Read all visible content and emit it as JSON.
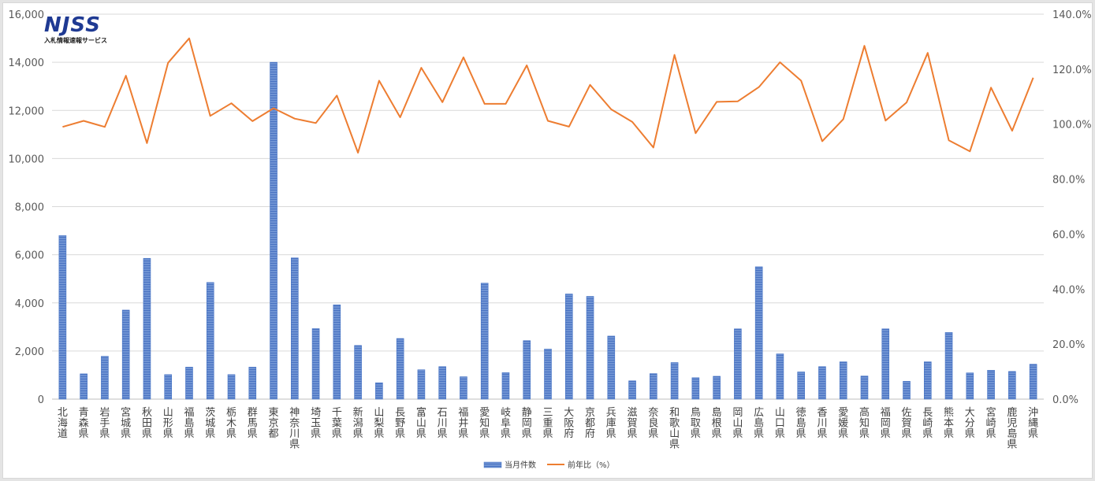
{
  "logo": {
    "mark": "NJSS",
    "subtitle": "入札情報速報サービス"
  },
  "colors": {
    "bar_fill": "#6f93d3",
    "bar_stripe": "#4472c4",
    "line": "#ed7d31",
    "grid": "#d9d9d9"
  },
  "legend": {
    "bar_label": "当月件数",
    "line_label": "前年比（%）"
  },
  "chart_data": {
    "type": "bar",
    "combo": "bar + line on secondary axis",
    "categories": [
      "北海道",
      "青森県",
      "岩手県",
      "宮城県",
      "秋田県",
      "山形県",
      "福島県",
      "茨城県",
      "栃木県",
      "群馬県",
      "東京都",
      "神奈川県",
      "埼玉県",
      "千葉県",
      "新潟県",
      "山梨県",
      "長野県",
      "富山県",
      "石川県",
      "福井県",
      "愛知県",
      "岐阜県",
      "静岡県",
      "三重県",
      "大阪府",
      "京都府",
      "兵庫県",
      "滋賀県",
      "奈良県",
      "和歌山県",
      "鳥取県",
      "島根県",
      "岡山県",
      "広島県",
      "山口県",
      "徳島県",
      "香川県",
      "愛媛県",
      "高知県",
      "福岡県",
      "佐賀県",
      "長崎県",
      "熊本県",
      "大分県",
      "宮崎県",
      "鹿児島県",
      "沖縄県"
    ],
    "series": [
      {
        "name": "当月件数",
        "axis": "left",
        "values": [
          6800,
          1050,
          1780,
          3700,
          5850,
          1020,
          1330,
          4850,
          1020,
          1330,
          14000,
          5870,
          2930,
          3920,
          2230,
          680,
          2520,
          1220,
          1350,
          930,
          4820,
          1100,
          2430,
          2080,
          4370,
          4270,
          2620,
          760,
          1060,
          1520,
          890,
          950,
          2920,
          5500,
          1880,
          1130,
          1350,
          1550,
          960,
          2920,
          740,
          1550,
          2770,
          1090,
          1200,
          1150,
          1450
        ]
      },
      {
        "name": "前年比（%）",
        "axis": "right",
        "values": [
          99.0,
          101.2,
          99.0,
          117.6,
          93.1,
          122.3,
          131.2,
          103.0,
          107.6,
          101.1,
          105.8,
          102.0,
          100.4,
          110.4,
          89.6,
          115.8,
          102.5,
          120.5,
          108.0,
          124.3,
          107.4,
          107.4,
          121.4,
          101.2,
          99.1,
          114.3,
          105.4,
          100.8,
          91.5,
          125.2,
          96.7,
          108.1,
          108.3,
          113.5,
          122.5,
          115.8,
          93.8,
          101.8,
          128.5,
          101.3,
          107.9,
          125.9,
          94.1,
          90.1,
          113.3,
          97.6,
          116.9
        ]
      }
    ],
    "y_left": {
      "ylim": [
        0,
        16000
      ],
      "ticks": [
        "0",
        "2,000",
        "4,000",
        "6,000",
        "8,000",
        "10,000",
        "12,000",
        "14,000",
        "16,000"
      ]
    },
    "y_right": {
      "ylim": [
        0,
        140
      ],
      "ticks": [
        "0.0%",
        "20.0%",
        "40.0%",
        "60.0%",
        "80.0%",
        "100.0%",
        "120.0%",
        "140.0%"
      ]
    },
    "grid": true,
    "legend_position": "bottom-center"
  }
}
